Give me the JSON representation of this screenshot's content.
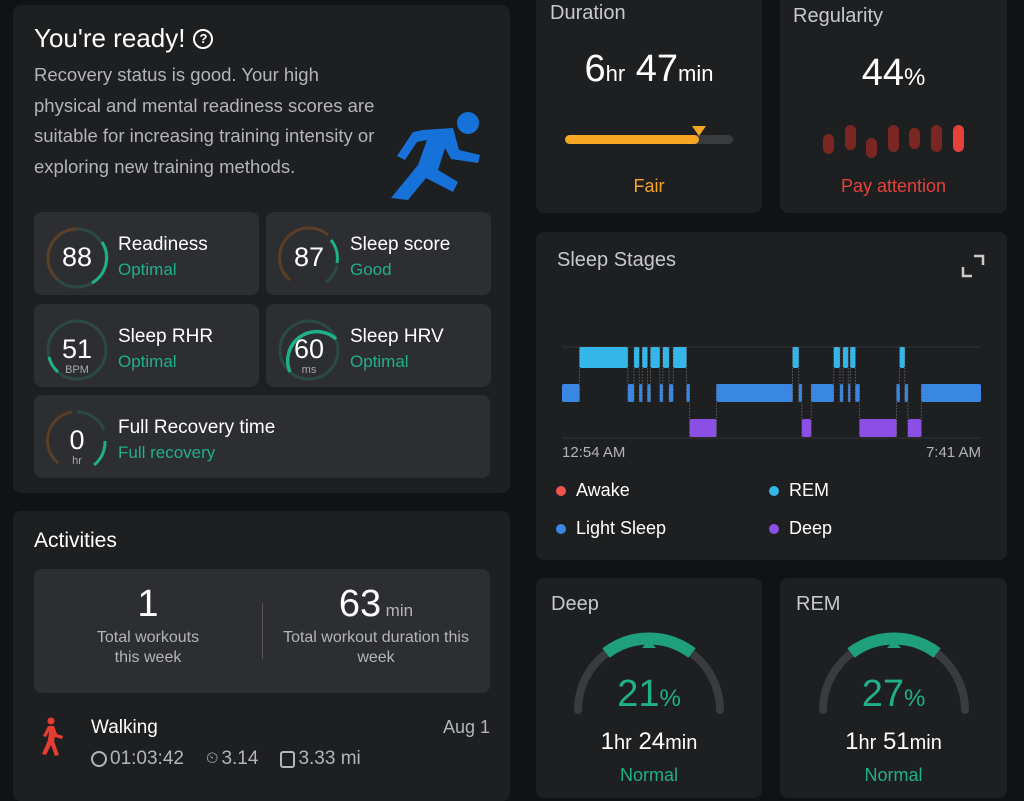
{
  "readiness_card": {
    "title": "You're ready!",
    "help_icon": "question-circle-icon",
    "description": "Recovery status is good.  Your high physical and mental readiness scores are suitable for increasing training intensity or exploring new training methods.",
    "icon": "running-person-icon",
    "metrics": [
      {
        "value": "88",
        "unit": "",
        "label": "Readiness",
        "status": "Optimal"
      },
      {
        "value": "87",
        "unit": "",
        "label": "Sleep score",
        "status": "Good"
      },
      {
        "value": "51",
        "unit": "BPM",
        "label": "Sleep RHR",
        "status": "Optimal"
      },
      {
        "value": "60",
        "unit": "ms",
        "label": "Sleep HRV",
        "status": "Optimal"
      },
      {
        "value": "0",
        "unit": "hr",
        "label": "Full Recovery time",
        "status": "Full recovery"
      }
    ]
  },
  "activities": {
    "title": "Activities",
    "total_workouts": "1",
    "total_workouts_label": "Total workouts this week",
    "total_duration": "63",
    "total_duration_unit": "min",
    "total_duration_label": "Total workout duration this week",
    "items": [
      {
        "type": "Walking",
        "icon": "walking-person-icon",
        "date": "Aug 1",
        "duration": "01:03:42",
        "pace": "3.14",
        "distance": "3.33 mi"
      }
    ]
  },
  "duration": {
    "title": "Duration",
    "hours": "6",
    "hours_unit": "hr",
    "minutes": "47",
    "minutes_unit": "min",
    "status": "Fair",
    "fill_percent": 80,
    "color": "#f5a623"
  },
  "regularity": {
    "title": "Regularity",
    "value": "44",
    "unit": "%",
    "status": "Pay attention",
    "color": "#e5413a"
  },
  "sleep_stages": {
    "title": "Sleep Stages",
    "expand_icon": "expand-icon",
    "start_label": "12:54 AM",
    "end_label": "7:41 AM",
    "start": "00:54",
    "end": "07:41",
    "colors": {
      "Awake": "#f0544f",
      "REM": "#35b6e8",
      "Light Sleep": "#3a86e3",
      "Deep": "#8b4fe6"
    },
    "legend": [
      "Awake",
      "REM",
      "Light Sleep",
      "Deep"
    ],
    "segments": [
      [
        "Light Sleep",
        "00:54",
        "01:11"
      ],
      [
        "REM",
        "01:11",
        "01:58"
      ],
      [
        "Light Sleep",
        "01:58",
        "02:04"
      ],
      [
        "REM",
        "02:04",
        "02:09"
      ],
      [
        "Light Sleep",
        "02:09",
        "02:12"
      ],
      [
        "REM",
        "02:12",
        "02:17"
      ],
      [
        "Light Sleep",
        "02:17",
        "02:20"
      ],
      [
        "REM",
        "02:20",
        "02:29"
      ],
      [
        "Light Sleep",
        "02:29",
        "02:32"
      ],
      [
        "REM",
        "02:32",
        "02:38"
      ],
      [
        "Light Sleep",
        "02:38",
        "02:42"
      ],
      [
        "REM",
        "02:42",
        "02:55"
      ],
      [
        "Light Sleep",
        "02:55",
        "02:58"
      ],
      [
        "Deep",
        "02:58",
        "03:24"
      ],
      [
        "Light Sleep",
        "03:24",
        "04:38"
      ],
      [
        "REM",
        "04:38",
        "04:44"
      ],
      [
        "Light Sleep",
        "04:44",
        "04:47"
      ],
      [
        "Deep",
        "04:47",
        "04:56"
      ],
      [
        "Light Sleep",
        "04:56",
        "05:18"
      ],
      [
        "REM",
        "05:18",
        "05:24"
      ],
      [
        "Light Sleep",
        "05:24",
        "05:27"
      ],
      [
        "REM",
        "05:27",
        "05:32"
      ],
      [
        "Light Sleep",
        "05:32",
        "05:34"
      ],
      [
        "REM",
        "05:34",
        "05:39"
      ],
      [
        "Light Sleep",
        "05:39",
        "05:43"
      ],
      [
        "Deep",
        "05:43",
        "06:19"
      ],
      [
        "Light Sleep",
        "06:19",
        "06:22"
      ],
      [
        "REM",
        "06:22",
        "06:27"
      ],
      [
        "Light Sleep",
        "06:27",
        "06:30"
      ],
      [
        "Deep",
        "06:30",
        "06:43"
      ],
      [
        "Light Sleep",
        "06:43",
        "07:41"
      ]
    ]
  },
  "deep": {
    "title": "Deep",
    "percent": "21",
    "unit": "%",
    "hours": "1",
    "minutes": "24",
    "hr_unit": "hr",
    "min_unit": "min",
    "status": "Normal"
  },
  "rem": {
    "title": "REM",
    "percent": "27",
    "unit": "%",
    "hours": "1",
    "minutes": "51",
    "hr_unit": "hr",
    "min_unit": "min",
    "status": "Normal"
  }
}
